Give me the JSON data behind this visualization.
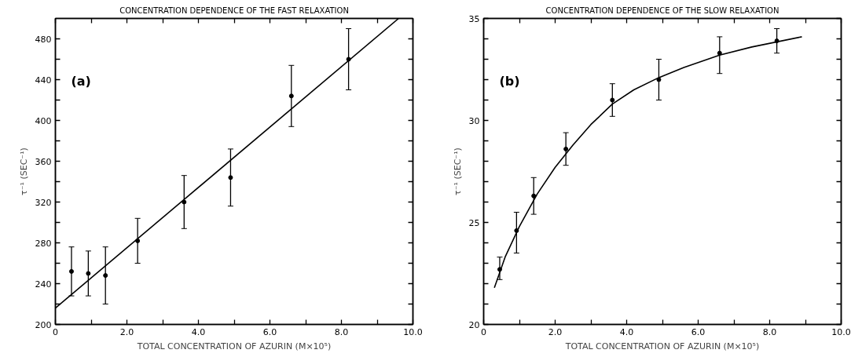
{
  "chart_data": [
    {
      "type": "scatter",
      "title": "CONCENTRATION DEPENDENCE OF THE FAST RELAXATION",
      "xlabel": "TOTAL CONCENTRATION OF AZURIN (M×10⁵)",
      "ylabel": "τ⁻¹ (SEC⁻¹)",
      "annotations": [
        "(a)"
      ],
      "xlim": [
        0,
        10
      ],
      "ylim": [
        200,
        500
      ],
      "xticks": [
        0,
        {
          "value": 1,
          "label": null
        },
        {
          "value": 2,
          "label": "2.0"
        },
        {
          "value": 3,
          "label": null
        },
        {
          "value": 4,
          "label": "4.0"
        },
        {
          "value": 5,
          "label": null
        },
        {
          "value": 6,
          "label": "6.0"
        },
        {
          "value": 7,
          "label": null
        },
        {
          "value": 8,
          "label": "8.0"
        },
        {
          "value": 9,
          "label": null
        },
        {
          "value": 10,
          "label": "10.0"
        }
      ],
      "yticks": [
        200,
        {
          "value": 220,
          "label": null
        },
        240,
        {
          "value": 260,
          "label": null
        },
        280,
        {
          "value": 300,
          "label": null
        },
        320,
        {
          "value": 340,
          "label": null
        },
        360,
        {
          "value": 380,
          "label": null
        },
        400,
        {
          "value": 420,
          "label": null
        },
        440,
        {
          "value": 460,
          "label": null
        },
        480
      ],
      "grid": false,
      "series": [
        {
          "marker": "circle",
          "color": "#000000",
          "x": [
            0.45,
            0.92,
            1.4,
            2.3,
            3.6,
            4.9,
            6.6,
            8.2
          ],
          "values": [
            252,
            250,
            248,
            282,
            320,
            344,
            424,
            460
          ],
          "errors": [
            [
              228,
              276
            ],
            [
              228,
              272
            ],
            [
              220,
              276
            ],
            [
              260,
              304
            ],
            [
              294,
              346
            ],
            [
              316,
              372
            ],
            [
              394,
              454
            ],
            [
              430,
              490
            ]
          ]
        },
        {
          "type": "line",
          "color": "#000000",
          "x": [
            0,
            9.6
          ],
          "values": [
            216,
            500
          ]
        }
      ]
    },
    {
      "type": "scatter",
      "title": "CONCENTRATION DEPENDENCE OF THE SLOW RELAXATION",
      "xlabel": "TOTAL CONCENTRATION OF AZURIN (M×10⁵)",
      "ylabel": "τ⁻¹ (SEC⁻¹)",
      "annotations": [
        "(b)"
      ],
      "xlim": [
        0,
        10
      ],
      "ylim": [
        20,
        35
      ],
      "xticks": [
        0,
        {
          "value": 1,
          "label": null
        },
        {
          "value": 2,
          "label": "2.0"
        },
        {
          "value": 3,
          "label": null
        },
        {
          "value": 4,
          "label": "4.0"
        },
        {
          "value": 5,
          "label": null
        },
        {
          "value": 6,
          "label": "6.0"
        },
        {
          "value": 7,
          "label": null
        },
        {
          "value": 8,
          "label": "8.0"
        },
        {
          "value": 9,
          "label": null
        },
        {
          "value": 10,
          "label": "10.0"
        }
      ],
      "yticks": [
        20,
        {
          "value": 21,
          "label": null
        },
        {
          "value": 22,
          "label": null
        },
        {
          "value": 23,
          "label": null
        },
        {
          "value": 24,
          "label": null
        },
        25,
        {
          "value": 26,
          "label": null
        },
        {
          "value": 27,
          "label": null
        },
        {
          "value": 28,
          "label": null
        },
        {
          "value": 29,
          "label": null
        },
        30,
        {
          "value": 31,
          "label": null
        },
        {
          "value": 32,
          "label": null
        },
        {
          "value": 33,
          "label": null
        },
        {
          "value": 34,
          "label": null
        },
        35
      ],
      "grid": false,
      "series": [
        {
          "marker": "circle",
          "color": "#000000",
          "x": [
            0.45,
            0.92,
            1.4,
            2.3,
            3.6,
            4.9,
            6.6,
            8.2
          ],
          "values": [
            22.7,
            24.6,
            26.3,
            28.6,
            31.0,
            32.0,
            33.3,
            33.9
          ],
          "errors": [
            [
              22.2,
              23.3
            ],
            [
              23.5,
              25.5
            ],
            [
              25.4,
              27.2
            ],
            [
              27.8,
              29.4
            ],
            [
              30.2,
              31.8
            ],
            [
              31.0,
              33.0
            ],
            [
              32.3,
              34.1
            ],
            [
              33.3,
              34.5
            ]
          ]
        },
        {
          "type": "line",
          "color": "#000000",
          "x": [
            0.3,
            0.6,
            1.0,
            1.5,
            2.0,
            2.5,
            3.0,
            3.6,
            4.2,
            4.9,
            5.6,
            6.6,
            7.5,
            8.9
          ],
          "values": [
            21.8,
            23.3,
            24.8,
            26.4,
            27.7,
            28.8,
            29.8,
            30.8,
            31.5,
            32.1,
            32.6,
            33.2,
            33.6,
            34.1
          ]
        }
      ]
    }
  ]
}
